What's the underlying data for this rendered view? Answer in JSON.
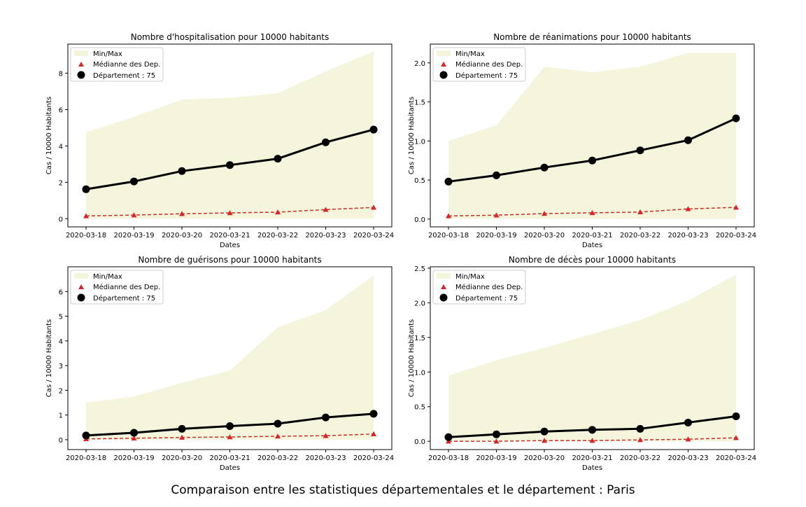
{
  "figure": {
    "suptitle": "Comparaison entre les statistiques départementales et le département : Paris"
  },
  "colors": {
    "minmax_fill": "#f5f5dc",
    "median": "#d62728",
    "department": "#000000"
  },
  "chart_data": [
    {
      "type": "line",
      "title": "Nombre d'hospitalisation pour 10000 habitants",
      "xlabel": "Dates",
      "ylabel": "Cas / 10000 Habitants",
      "x": [
        "2020-03-18",
        "2020-03-19",
        "2020-03-20",
        "2020-03-21",
        "2020-03-22",
        "2020-03-23",
        "2020-03-24"
      ],
      "ylim": [
        -0.45,
        9.6
      ],
      "yticks": [
        0,
        2,
        4,
        6,
        8
      ],
      "ytick_labels": [
        "0",
        "2",
        "4",
        "6",
        "8"
      ],
      "legend_position": "upper-left",
      "min": [
        0,
        0,
        0,
        0,
        0,
        0,
        0
      ],
      "max": [
        4.75,
        5.6,
        6.55,
        6.65,
        6.9,
        8.1,
        9.2
      ],
      "series": [
        {
          "name": "Médianne des Dep.",
          "values": [
            0.15,
            0.2,
            0.27,
            0.32,
            0.36,
            0.5,
            0.62
          ]
        },
        {
          "name": "Département : 75",
          "values": [
            1.62,
            2.05,
            2.62,
            2.95,
            3.3,
            4.2,
            4.9
          ]
        }
      ],
      "legend": [
        "Min/Max",
        "Médianne des Dep.",
        "Département : 75"
      ]
    },
    {
      "type": "line",
      "title": "Nombre de réanimations pour 10000 habitants",
      "xlabel": "Dates",
      "ylabel": "Cas / 10000 Habitants",
      "x": [
        "2020-03-18",
        "2020-03-19",
        "2020-03-20",
        "2020-03-21",
        "2020-03-22",
        "2020-03-23",
        "2020-03-24"
      ],
      "ylim": [
        -0.1,
        2.24
      ],
      "yticks": [
        0,
        0.5,
        1,
        1.5,
        2
      ],
      "ytick_labels": [
        "0.0",
        "0.5",
        "1.0",
        "1.5",
        "2.0"
      ],
      "legend_position": "upper-left",
      "min": [
        0,
        0,
        0,
        0,
        0,
        0,
        0
      ],
      "max": [
        1.0,
        1.2,
        1.95,
        1.88,
        1.95,
        2.13,
        2.13
      ],
      "series": [
        {
          "name": "Médianne des Dep.",
          "values": [
            0.04,
            0.05,
            0.07,
            0.08,
            0.09,
            0.13,
            0.15
          ]
        },
        {
          "name": "Département : 75",
          "values": [
            0.48,
            0.56,
            0.66,
            0.75,
            0.88,
            1.01,
            1.29
          ]
        }
      ],
      "legend": [
        "Min/Max",
        "Médianne des Dep.",
        "Département : 75"
      ]
    },
    {
      "type": "line",
      "title": "Nombre de guérisons pour 10000 habitants",
      "xlabel": "Dates",
      "ylabel": "Cas / 10000 Habitants",
      "x": [
        "2020-03-18",
        "2020-03-19",
        "2020-03-20",
        "2020-03-21",
        "2020-03-22",
        "2020-03-23",
        "2020-03-24"
      ],
      "ylim": [
        -0.4,
        7.0
      ],
      "yticks": [
        0,
        1,
        2,
        3,
        4,
        5,
        6
      ],
      "ytick_labels": [
        "0",
        "1",
        "2",
        "3",
        "4",
        "5",
        "6"
      ],
      "legend_position": "upper-left",
      "min": [
        0,
        0,
        0,
        0,
        0,
        0,
        0
      ],
      "max": [
        1.5,
        1.75,
        2.3,
        2.8,
        4.55,
        5.25,
        6.65
      ],
      "series": [
        {
          "name": "Médianne des Dep.",
          "values": [
            0.03,
            0.06,
            0.09,
            0.11,
            0.14,
            0.16,
            0.23
          ]
        },
        {
          "name": "Département : 75",
          "values": [
            0.17,
            0.28,
            0.44,
            0.55,
            0.65,
            0.9,
            1.05
          ]
        }
      ],
      "legend": [
        "Min/Max",
        "Médianne des Dep.",
        "Département : 75"
      ]
    },
    {
      "type": "line",
      "title": "Nombre de décès pour 10000 habitants",
      "xlabel": "Dates",
      "ylabel": "Cas / 10000 Habitants",
      "x": [
        "2020-03-18",
        "2020-03-19",
        "2020-03-20",
        "2020-03-21",
        "2020-03-22",
        "2020-03-23",
        "2020-03-24"
      ],
      "ylim": [
        -0.12,
        2.52
      ],
      "yticks": [
        0,
        0.5,
        1,
        1.5,
        2,
        2.5
      ],
      "ytick_labels": [
        "0.0",
        "0.5",
        "1.0",
        "1.5",
        "2.0",
        "2.5"
      ],
      "legend_position": "upper-left",
      "min": [
        0,
        0,
        0,
        0,
        0,
        0,
        0
      ],
      "max": [
        0.95,
        1.17,
        1.35,
        1.55,
        1.75,
        2.03,
        2.41
      ],
      "series": [
        {
          "name": "Médianne des Dep.",
          "values": [
            0.0,
            0.0,
            0.01,
            0.01,
            0.02,
            0.03,
            0.05
          ]
        },
        {
          "name": "Département : 75",
          "values": [
            0.06,
            0.1,
            0.14,
            0.165,
            0.18,
            0.27,
            0.36
          ]
        }
      ],
      "legend": [
        "Min/Max",
        "Médianne des Dep.",
        "Département : 75"
      ]
    }
  ]
}
